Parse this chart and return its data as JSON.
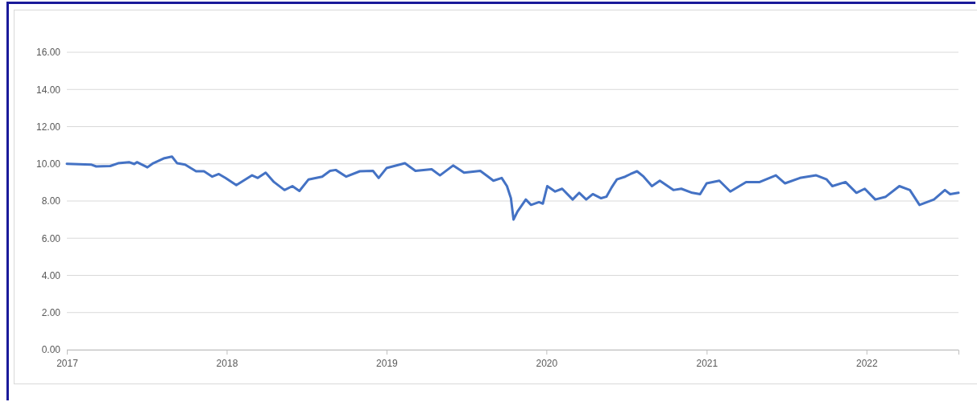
{
  "chart_data": {
    "type": "line",
    "x": [
      "2017-01-01",
      "2017-02-25",
      "2017-03-09",
      "2017-04-10",
      "2017-04-28",
      "2017-05-23",
      "2017-06-04",
      "2017-06-10",
      "2017-07-04",
      "2017-07-17",
      "2017-08-10",
      "2017-08-29",
      "2017-09-10",
      "2017-09-28",
      "2017-10-23",
      "2017-11-10",
      "2017-11-29",
      "2017-12-14",
      "2017-12-29",
      "2018-01-23",
      "2018-02-28",
      "2018-03-13",
      "2018-03-31",
      "2018-04-19",
      "2018-05-13",
      "2018-05-31",
      "2018-06-16",
      "2018-07-07",
      "2018-08-07",
      "2018-08-25",
      "2018-09-07",
      "2018-10-01",
      "2018-11-01",
      "2018-12-01",
      "2018-12-14",
      "2019-01-01",
      "2019-02-12",
      "2019-03-08",
      "2019-04-14",
      "2019-05-03",
      "2019-06-02",
      "2019-06-27",
      "2019-08-03",
      "2019-08-21",
      "2019-09-02",
      "2019-09-21",
      "2019-10-03",
      "2019-10-12",
      "2019-10-18",
      "2019-10-27",
      "2019-11-15",
      "2019-11-27",
      "2019-12-15",
      "2019-12-24",
      "2020-01-03",
      "2020-01-21",
      "2020-02-06",
      "2020-03-01",
      "2020-03-16",
      "2020-04-01",
      "2020-04-16",
      "2020-05-05",
      "2020-05-17",
      "2020-05-29",
      "2020-06-10",
      "2020-06-29",
      "2020-07-11",
      "2020-07-26",
      "2020-08-10",
      "2020-08-29",
      "2020-09-16",
      "2020-10-17",
      "2020-11-04",
      "2020-11-29",
      "2020-12-17",
      "2021-01-01",
      "2021-01-30",
      "2021-02-24",
      "2021-04-01",
      "2021-05-02",
      "2021-06-08",
      "2021-06-29",
      "2021-08-02",
      "2021-09-08",
      "2021-10-02",
      "2021-10-15",
      "2021-11-14",
      "2021-12-09",
      "2021-12-28",
      "2022-01-21",
      "2022-02-14",
      "2022-03-17",
      "2022-04-10",
      "2022-05-02",
      "2022-06-04",
      "2022-06-29",
      "2022-07-11",
      "2022-07-30"
    ],
    "series": [
      {
        "color": "#4472c4",
        "values": [
          10.0,
          9.96,
          9.86,
          9.88,
          10.03,
          10.09,
          9.99,
          10.09,
          9.81,
          10.03,
          10.29,
          10.39,
          10.03,
          9.96,
          9.6,
          9.6,
          9.31,
          9.45,
          9.24,
          8.85,
          9.38,
          9.24,
          9.52,
          9.02,
          8.59,
          8.8,
          8.54,
          9.16,
          9.31,
          9.62,
          9.67,
          9.31,
          9.6,
          9.62,
          9.24,
          9.77,
          10.03,
          9.62,
          9.71,
          9.38,
          9.91,
          9.52,
          9.62,
          9.31,
          9.09,
          9.24,
          8.8,
          8.15,
          7.0,
          7.43,
          8.08,
          7.79,
          7.94,
          7.86,
          8.8,
          8.51,
          8.66,
          8.08,
          8.44,
          8.08,
          8.37,
          8.15,
          8.23,
          8.73,
          9.16,
          9.31,
          9.45,
          9.6,
          9.31,
          8.8,
          9.09,
          8.59,
          8.66,
          8.44,
          8.37,
          8.95,
          9.09,
          8.51,
          9.02,
          9.02,
          9.38,
          8.95,
          9.24,
          9.38,
          9.16,
          8.8,
          9.02,
          8.44,
          8.66,
          8.08,
          8.23,
          8.8,
          8.59,
          7.79,
          8.08,
          8.59,
          8.37,
          8.44
        ]
      }
    ],
    "xlim": [
      "2017-01-01",
      "2022-07-30"
    ],
    "xticks": [
      "2017",
      "2018",
      "2019",
      "2020",
      "2021",
      "2022"
    ],
    "ylim": [
      0,
      16
    ],
    "yticks": [
      {
        "value": 0,
        "label": "0.00"
      },
      {
        "value": 2,
        "label": "2.00"
      },
      {
        "value": 4,
        "label": "4.00"
      },
      {
        "value": 6,
        "label": "6.00"
      },
      {
        "value": 8,
        "label": "8.00"
      },
      {
        "value": 10,
        "label": "10.00"
      },
      {
        "value": 12,
        "label": "12.00"
      },
      {
        "value": 14,
        "label": "14.00"
      },
      {
        "value": 16,
        "label": "16.00"
      }
    ],
    "grid": "y",
    "marker": "none",
    "line_style": "solid"
  }
}
